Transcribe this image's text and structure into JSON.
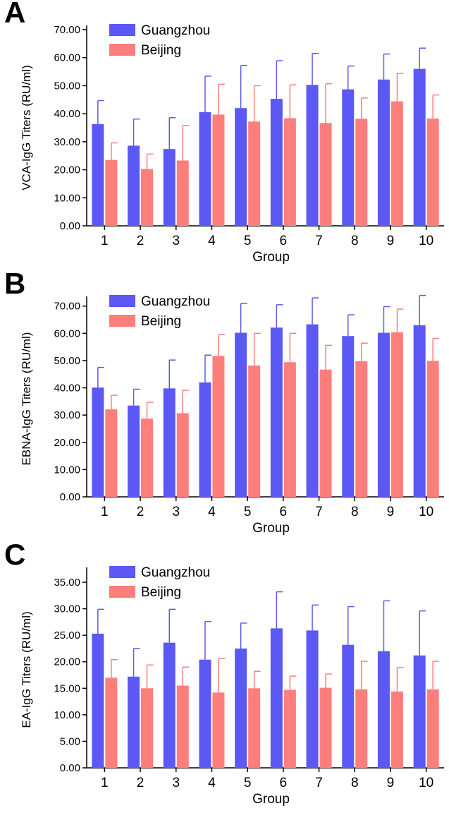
{
  "chart_data": [
    {
      "panel_label": "A",
      "type": "bar",
      "categories": [
        "1",
        "2",
        "3",
        "4",
        "5",
        "6",
        "7",
        "8",
        "9",
        "10"
      ],
      "ylabel": "VCA-IgG Titers (RU/ml)",
      "xlabel": "Group",
      "ylim": [
        0,
        70
      ],
      "yticks": [
        "0.00",
        "10.00",
        "20.00",
        "30.00",
        "40.00",
        "50.00",
        "60.00",
        "70.00"
      ],
      "legend_position": "top-left",
      "series": [
        {
          "name": "Guangzhou",
          "color": "#5b58f5",
          "values": [
            36.3,
            28.6,
            27.4,
            40.6,
            42.0,
            45.3,
            50.3,
            48.7,
            52.2,
            56.0
          ],
          "errors": [
            8.4,
            9.5,
            11.2,
            12.8,
            15.2,
            13.6,
            11.2,
            8.3,
            9.1,
            7.4
          ]
        },
        {
          "name": "Beijing",
          "color": "#fe7e7c",
          "values": [
            23.5,
            20.3,
            23.3,
            39.7,
            37.2,
            38.4,
            36.7,
            38.2,
            44.4,
            38.3
          ],
          "errors": [
            6.1,
            5.3,
            12.5,
            10.8,
            12.8,
            11.9,
            14.0,
            7.4,
            10.0,
            8.4
          ]
        }
      ]
    },
    {
      "panel_label": "B",
      "type": "bar",
      "categories": [
        "1",
        "2",
        "3",
        "4",
        "5",
        "6",
        "7",
        "8",
        "9",
        "10"
      ],
      "ylabel": "EBNA-IgG Titers (RU/ml)",
      "xlabel": "Group",
      "ylim": [
        0,
        72
      ],
      "yticks": [
        "0.00",
        "10.00",
        "20.00",
        "30.00",
        "40.00",
        "50.00",
        "60.00",
        "70.00"
      ],
      "legend_position": "top-left",
      "series": [
        {
          "name": "Guangzhou",
          "color": "#5b58f5",
          "values": [
            40.1,
            33.5,
            39.8,
            42.0,
            60.2,
            62.1,
            63.3,
            59.0,
            60.2,
            63.0
          ],
          "errors": [
            7.4,
            6.0,
            10.4,
            10.0,
            10.8,
            8.4,
            9.7,
            7.8,
            9.6,
            10.9
          ]
        },
        {
          "name": "Beijing",
          "color": "#fe7e7c",
          "values": [
            32.1,
            28.7,
            30.7,
            51.7,
            48.2,
            49.4,
            46.7,
            49.8,
            60.4,
            49.9
          ],
          "errors": [
            5.2,
            6.0,
            8.4,
            7.8,
            11.8,
            10.6,
            8.9,
            6.6,
            8.5,
            8.2
          ]
        }
      ]
    },
    {
      "panel_label": "C",
      "type": "bar",
      "categories": [
        "1",
        "2",
        "3",
        "4",
        "5",
        "6",
        "7",
        "8",
        "9",
        "10"
      ],
      "ylabel": "EA-IgG Titers (RU/ml)",
      "xlabel": "Group",
      "ylim": [
        0,
        37
      ],
      "yticks": [
        "0.00",
        "5.00",
        "10.00",
        "15.00",
        "20.00",
        "25.00",
        "30.00",
        "35.00"
      ],
      "legend_position": "top-left",
      "series": [
        {
          "name": "Guangzhou",
          "color": "#5b58f5",
          "values": [
            25.3,
            17.2,
            23.6,
            20.4,
            22.5,
            26.3,
            25.9,
            23.2,
            22.0,
            21.2
          ],
          "errors": [
            4.6,
            5.3,
            6.3,
            7.2,
            4.8,
            6.9,
            4.8,
            7.2,
            9.5,
            8.4
          ]
        },
        {
          "name": "Beijing",
          "color": "#fe7e7c",
          "values": [
            17.0,
            15.0,
            15.5,
            14.2,
            15.0,
            14.7,
            15.1,
            14.8,
            14.4,
            14.8
          ],
          "errors": [
            3.4,
            4.4,
            3.5,
            6.4,
            3.2,
            2.6,
            2.6,
            5.3,
            4.5,
            5.3
          ]
        }
      ]
    }
  ]
}
